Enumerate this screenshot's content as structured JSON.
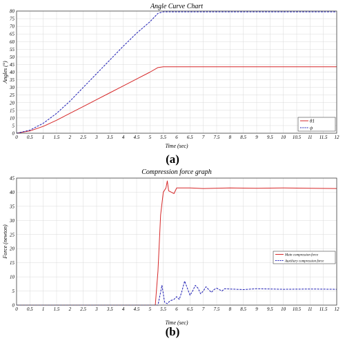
{
  "chart_data": [
    {
      "type": "line",
      "title": "Angle Curve Chart",
      "xlabel": "Time (sec)",
      "ylabel": "Angles (°)",
      "xlim": [
        0,
        12
      ],
      "ylim": [
        0,
        80
      ],
      "xticks": [
        0,
        0.5,
        1,
        1.5,
        2,
        2.5,
        3,
        3.5,
        4,
        4.5,
        5,
        5.5,
        6,
        6.5,
        7,
        7.5,
        8,
        8.5,
        9,
        9.5,
        10,
        10.5,
        11,
        11.5,
        12
      ],
      "yticks": [
        0,
        5,
        10,
        15,
        20,
        25,
        30,
        35,
        40,
        45,
        50,
        55,
        60,
        65,
        70,
        75,
        80
      ],
      "grid": true,
      "legend_position": "bottom-right",
      "panel_label": "(a)",
      "series": [
        {
          "name": "θ1",
          "color": "#d62728",
          "style": "solid",
          "x": [
            0,
            0.5,
            1,
            1.5,
            2,
            2.5,
            3,
            3.5,
            4,
            4.5,
            5,
            5.3,
            5.5,
            6,
            7,
            8,
            9,
            10,
            11,
            12
          ],
          "y": [
            0,
            1.5,
            4.5,
            8.5,
            13,
            17.5,
            22,
            26.5,
            31,
            35.5,
            40,
            43,
            43.5,
            43.5,
            43.5,
            43.5,
            43.5,
            43.5,
            43.5,
            43.5
          ]
        },
        {
          "name": "ψ",
          "color": "#1f1fb4",
          "style": "dashed",
          "x": [
            0,
            0.5,
            1,
            1.5,
            2,
            2.5,
            3,
            3.5,
            4,
            4.5,
            5,
            5.3,
            5.5,
            6,
            7,
            8,
            9,
            10,
            11,
            12
          ],
          "y": [
            0,
            2,
            6.5,
            13,
            21,
            30,
            39,
            48,
            57,
            65.5,
            73,
            78.5,
            79.5,
            79.5,
            79.5,
            79.5,
            79.5,
            79.5,
            79.5,
            79.5
          ]
        }
      ]
    },
    {
      "type": "line",
      "title": "Compression force graph",
      "xlabel": "Time (sec)",
      "ylabel": "Force (newton)",
      "xlim": [
        0,
        12
      ],
      "ylim": [
        0,
        45
      ],
      "xticks": [
        0,
        0.5,
        1,
        1.5,
        2,
        2.5,
        3,
        3.5,
        4,
        4.5,
        5,
        5.5,
        6,
        6.5,
        7,
        7.5,
        8,
        8.5,
        9,
        9.5,
        10,
        10.5,
        11,
        11.5,
        12
      ],
      "yticks": [
        0,
        5,
        10,
        15,
        20,
        25,
        30,
        35,
        40,
        45
      ],
      "grid": true,
      "legend_position": "right",
      "panel_label": "(b)",
      "series": [
        {
          "name": "Main compression force",
          "color": "#d62728",
          "style": "solid",
          "x": [
            0,
            5.2,
            5.3,
            5.4,
            5.5,
            5.6,
            5.65,
            5.7,
            5.8,
            5.9,
            6.0,
            6.5,
            7,
            8,
            9,
            10,
            11,
            12
          ],
          "y": [
            0,
            0,
            12,
            32,
            40,
            41.5,
            44,
            40.5,
            40,
            39.5,
            41.5,
            41.5,
            41.3,
            41.5,
            41.4,
            41.5,
            41.4,
            41.3
          ]
        },
        {
          "name": "Auxiliary compression force",
          "color": "#1f1fb4",
          "style": "dashed",
          "x": [
            0,
            5.3,
            5.45,
            5.55,
            5.65,
            5.75,
            5.9,
            6.0,
            6.1,
            6.2,
            6.3,
            6.4,
            6.5,
            6.6,
            6.7,
            6.8,
            6.9,
            7.0,
            7.1,
            7.2,
            7.3,
            7.4,
            7.5,
            7.6,
            7.7,
            7.8,
            8.0,
            8.5,
            9,
            10,
            11,
            12
          ],
          "y": [
            0,
            0,
            7,
            1,
            0.5,
            1.5,
            2,
            3,
            2,
            5,
            8.5,
            6,
            3.5,
            5,
            7,
            6,
            4,
            5,
            6.5,
            5.5,
            4.5,
            5.5,
            6,
            5.5,
            5,
            5.8,
            5.7,
            5.5,
            5.8,
            5.6,
            5.7,
            5.6
          ]
        }
      ]
    }
  ]
}
